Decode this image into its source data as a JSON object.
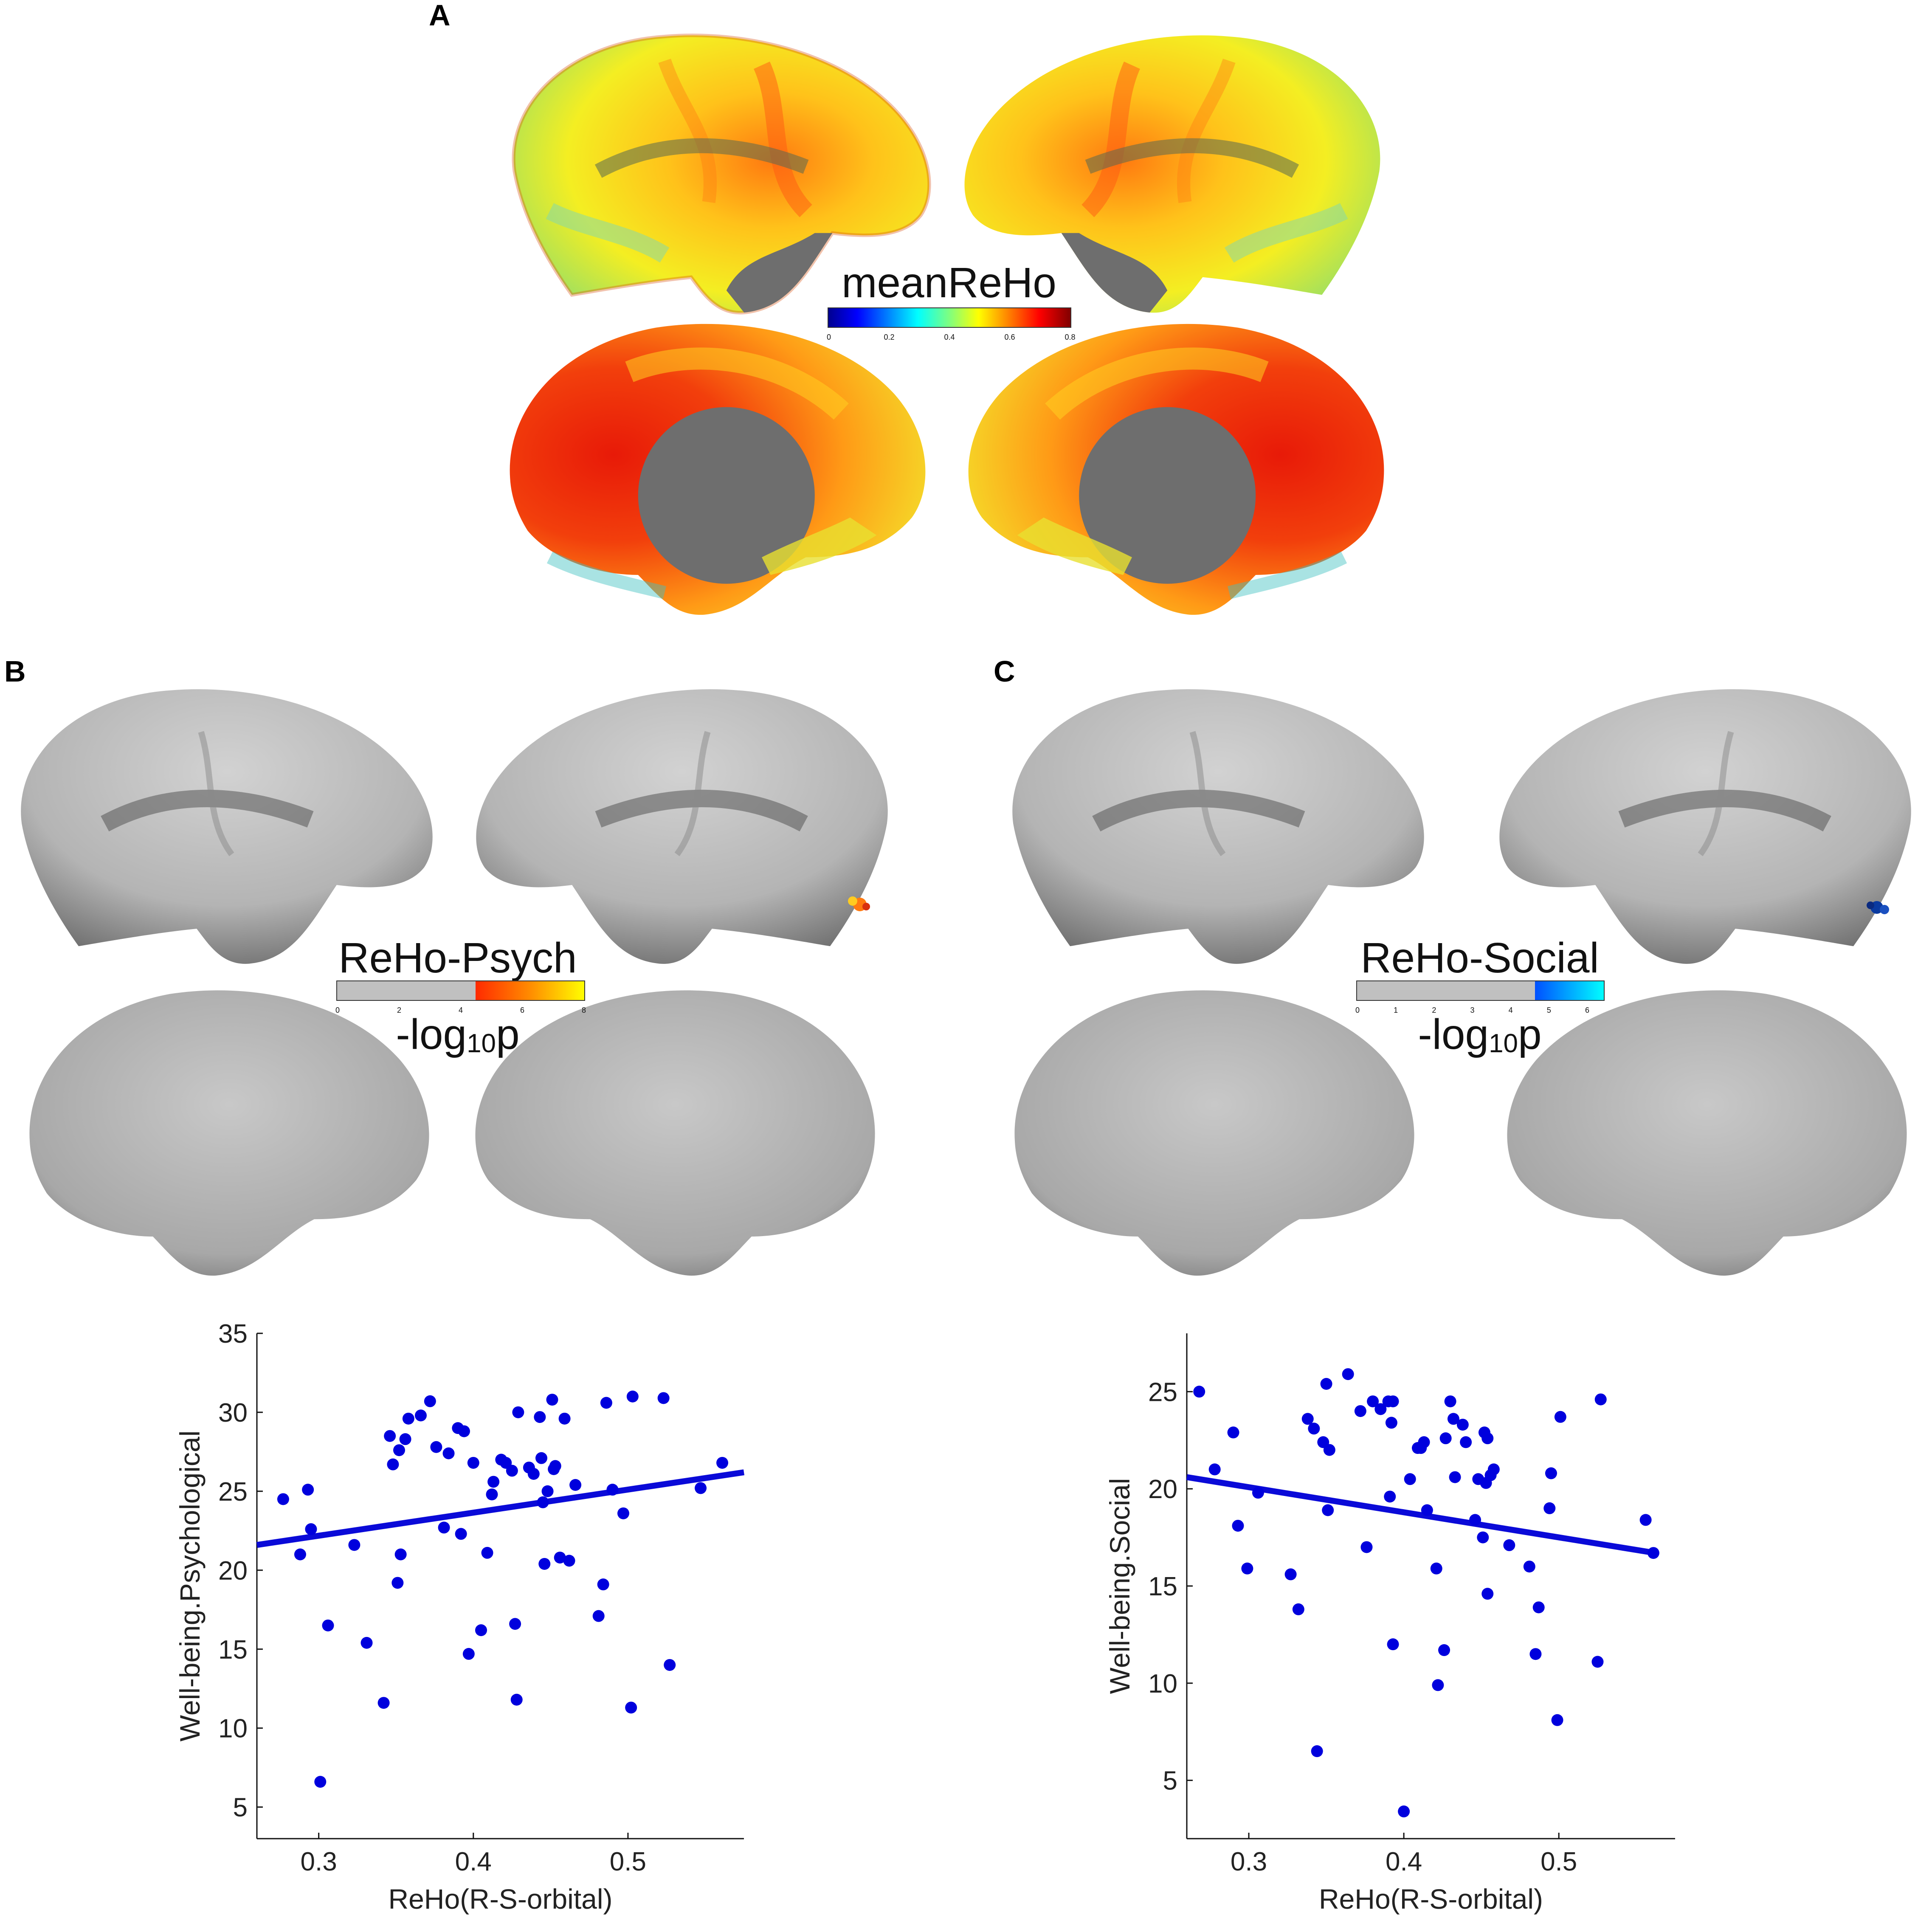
{
  "panels": {
    "A": {
      "letter": "A",
      "colorbar": {
        "title": "meanReHo",
        "ticks": [
          "0",
          "0.2",
          "0.4",
          "0.6",
          "0.8"
        ]
      }
    },
    "B": {
      "letter": "B",
      "colorbar": {
        "title": "ReHo-Psych",
        "ticks": [
          "0",
          "2",
          "4",
          "6",
          "8"
        ],
        "threshold_fraction": 0.56,
        "sub_prefix": "-log",
        "sub_sub": "10",
        "sub_suffix": "p"
      }
    },
    "C": {
      "letter": "C",
      "colorbar": {
        "title": "ReHo-Social",
        "ticks": [
          "0",
          "1",
          "2",
          "3",
          "4",
          "5",
          "6"
        ],
        "threshold_fraction": 0.72,
        "sub_prefix": "-log",
        "sub_sub": "10",
        "sub_suffix": "p"
      }
    }
  },
  "colors": {
    "points": "#0000dd",
    "fit_line": "#0a0ad8",
    "cortex_gray": "#bdbdbd",
    "medial_wall": "#6e6e6e"
  },
  "chart_data": [
    {
      "type": "scatter",
      "panel": "B",
      "xlabel": "ReHo(R-S-orbital)",
      "ylabel": "Well-being.Psychological",
      "xlim": [
        0.26,
        0.575
      ],
      "ylim": [
        3,
        35
      ],
      "xticks": [
        0.3,
        0.4,
        0.5
      ],
      "xtick_labels": [
        "0.3",
        "0.4",
        "0.5"
      ],
      "yticks": [
        5,
        10,
        15,
        20,
        25,
        30,
        35
      ],
      "ytick_labels": [
        "5",
        "10",
        "15",
        "20",
        "25",
        "30",
        "35"
      ],
      "fit_line": [
        [
          0.26,
          21.6
        ],
        [
          0.575,
          26.2
        ]
      ],
      "points": [
        [
          0.277,
          24.5
        ],
        [
          0.288,
          21.0
        ],
        [
          0.293,
          25.1
        ],
        [
          0.295,
          22.6
        ],
        [
          0.301,
          6.6
        ],
        [
          0.306,
          16.5
        ],
        [
          0.323,
          21.6
        ],
        [
          0.331,
          15.4
        ],
        [
          0.342,
          11.6
        ],
        [
          0.346,
          28.5
        ],
        [
          0.348,
          26.7
        ],
        [
          0.351,
          19.2
        ],
        [
          0.352,
          27.6
        ],
        [
          0.353,
          21.0
        ],
        [
          0.356,
          28.3
        ],
        [
          0.358,
          29.6
        ],
        [
          0.366,
          29.8
        ],
        [
          0.372,
          30.7
        ],
        [
          0.376,
          27.8
        ],
        [
          0.381,
          22.7
        ],
        [
          0.384,
          27.4
        ],
        [
          0.39,
          29.0
        ],
        [
          0.392,
          22.3
        ],
        [
          0.394,
          28.8
        ],
        [
          0.397,
          14.7
        ],
        [
          0.4,
          26.8
        ],
        [
          0.405,
          16.2
        ],
        [
          0.409,
          21.1
        ],
        [
          0.412,
          24.8
        ],
        [
          0.413,
          25.6
        ],
        [
          0.418,
          27.0
        ],
        [
          0.421,
          26.8
        ],
        [
          0.425,
          26.3
        ],
        [
          0.427,
          16.6
        ],
        [
          0.428,
          11.8
        ],
        [
          0.429,
          30.0
        ],
        [
          0.436,
          26.5
        ],
        [
          0.439,
          26.1
        ],
        [
          0.443,
          29.7
        ],
        [
          0.444,
          27.1
        ],
        [
          0.445,
          24.3
        ],
        [
          0.446,
          20.4
        ],
        [
          0.448,
          25.0
        ],
        [
          0.451,
          30.8
        ],
        [
          0.452,
          26.4
        ],
        [
          0.453,
          26.6
        ],
        [
          0.456,
          20.8
        ],
        [
          0.459,
          29.6
        ],
        [
          0.462,
          20.6
        ],
        [
          0.466,
          25.4
        ],
        [
          0.481,
          17.1
        ],
        [
          0.484,
          19.1
        ],
        [
          0.486,
          30.6
        ],
        [
          0.49,
          25.1
        ],
        [
          0.497,
          23.6
        ],
        [
          0.502,
          11.3
        ],
        [
          0.503,
          31.0
        ],
        [
          0.523,
          30.9
        ],
        [
          0.527,
          14.0
        ],
        [
          0.547,
          25.2
        ],
        [
          0.561,
          26.8
        ]
      ]
    },
    {
      "type": "scatter",
      "panel": "C",
      "xlabel": "ReHo(R-S-orbital)",
      "ylabel": "Well-being.Social",
      "xlim": [
        0.26,
        0.575
      ],
      "ylim": [
        2,
        28
      ],
      "xticks": [
        0.3,
        0.4,
        0.5
      ],
      "xtick_labels": [
        "0.3",
        "0.4",
        "0.5"
      ],
      "yticks": [
        5,
        10,
        15,
        20,
        25
      ],
      "ytick_labels": [
        "5",
        "10",
        "15",
        "20",
        "25"
      ],
      "fit_line": [
        [
          0.26,
          20.6
        ],
        [
          0.562,
          16.7
        ]
      ],
      "points": [
        [
          0.268,
          25.0
        ],
        [
          0.278,
          21.0
        ],
        [
          0.29,
          22.9
        ],
        [
          0.293,
          18.1
        ],
        [
          0.299,
          15.9
        ],
        [
          0.306,
          19.8
        ],
        [
          0.327,
          15.6
        ],
        [
          0.332,
          13.8
        ],
        [
          0.338,
          23.6
        ],
        [
          0.342,
          23.1
        ],
        [
          0.344,
          6.5
        ],
        [
          0.348,
          22.4
        ],
        [
          0.35,
          25.4
        ],
        [
          0.351,
          18.9
        ],
        [
          0.352,
          22.0
        ],
        [
          0.364,
          25.9
        ],
        [
          0.372,
          24.0
        ],
        [
          0.376,
          17.0
        ],
        [
          0.38,
          24.5
        ],
        [
          0.385,
          24.1
        ],
        [
          0.39,
          24.5
        ],
        [
          0.391,
          19.6
        ],
        [
          0.392,
          23.4
        ],
        [
          0.393,
          12.0
        ],
        [
          0.393,
          24.5
        ],
        [
          0.4,
          3.4
        ],
        [
          0.404,
          20.5
        ],
        [
          0.409,
          22.1
        ],
        [
          0.411,
          22.1
        ],
        [
          0.413,
          22.4
        ],
        [
          0.415,
          18.9
        ],
        [
          0.421,
          15.9
        ],
        [
          0.422,
          9.9
        ],
        [
          0.426,
          11.7
        ],
        [
          0.427,
          22.6
        ],
        [
          0.43,
          24.5
        ],
        [
          0.432,
          23.6
        ],
        [
          0.433,
          20.6
        ],
        [
          0.438,
          23.3
        ],
        [
          0.44,
          22.4
        ],
        [
          0.446,
          18.4
        ],
        [
          0.448,
          20.5
        ],
        [
          0.451,
          17.5
        ],
        [
          0.452,
          22.9
        ],
        [
          0.453,
          20.3
        ],
        [
          0.454,
          22.6
        ],
        [
          0.454,
          14.6
        ],
        [
          0.456,
          20.7
        ],
        [
          0.458,
          21.0
        ],
        [
          0.468,
          17.1
        ],
        [
          0.481,
          16.0
        ],
        [
          0.485,
          11.5
        ],
        [
          0.487,
          13.9
        ],
        [
          0.494,
          19.0
        ],
        [
          0.495,
          20.8
        ],
        [
          0.499,
          8.1
        ],
        [
          0.501,
          23.7
        ],
        [
          0.525,
          11.1
        ],
        [
          0.527,
          24.6
        ],
        [
          0.556,
          18.4
        ],
        [
          0.561,
          16.7
        ]
      ]
    }
  ]
}
